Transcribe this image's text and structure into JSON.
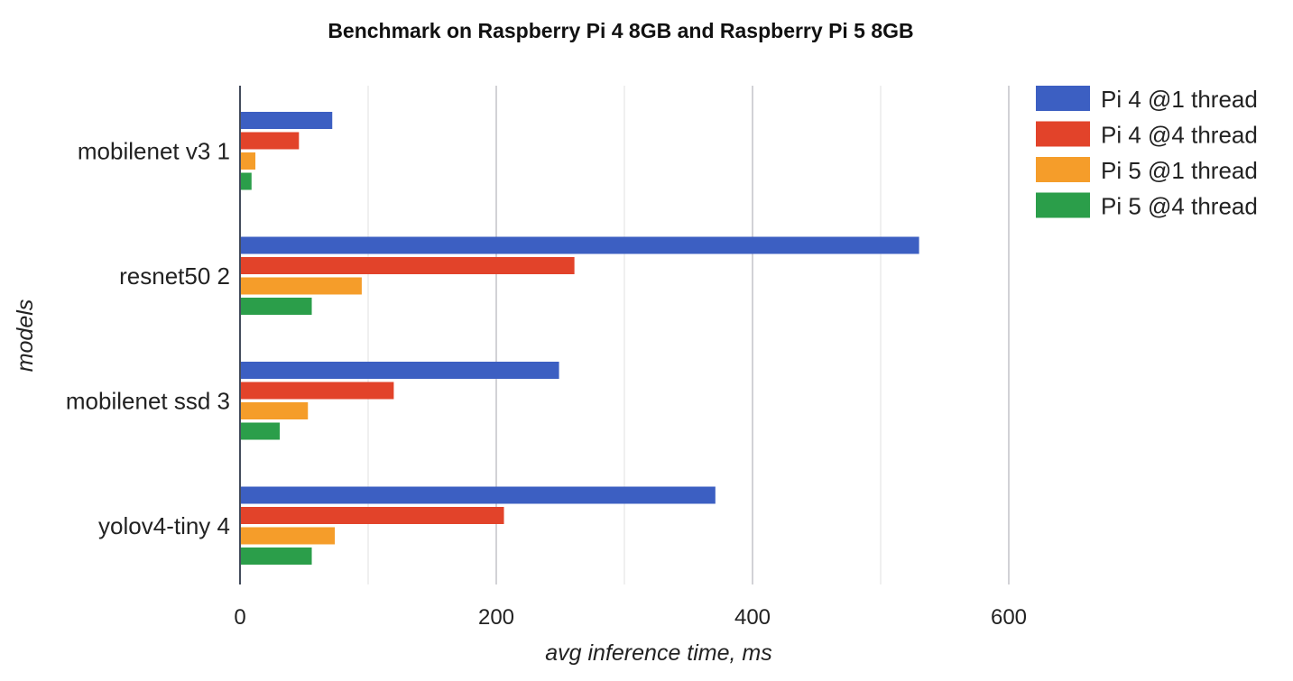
{
  "chart_data": {
    "type": "bar",
    "orientation": "horizontal",
    "title": "Benchmark on Raspberry Pi 4 8GB and Raspberry Pi 5 8GB",
    "xlabel": "avg inference time, ms",
    "ylabel": "models",
    "xlim": [
      0,
      600
    ],
    "xticks": [
      0,
      200,
      400,
      600
    ],
    "minor_gridlines": [
      100,
      300,
      500
    ],
    "grid": true,
    "legend_position": "top-right",
    "categories": [
      "mobilenet v3 1",
      "resnet50 2",
      "mobilenet ssd 3",
      "yolov4-tiny 4"
    ],
    "series": [
      {
        "name": "Pi 4 @1 thread",
        "color": "#3c5fc2",
        "values": [
          72,
          530,
          249,
          371
        ]
      },
      {
        "name": "Pi 4 @4 thread",
        "color": "#e2432a",
        "values": [
          46,
          261,
          120,
          206
        ]
      },
      {
        "name": "Pi 5 @1 thread",
        "color": "#f59d2a",
        "values": [
          12,
          95,
          53,
          74
        ]
      },
      {
        "name": "Pi 5 @4 thread",
        "color": "#2b9e4a",
        "values": [
          9,
          56,
          31,
          56
        ]
      }
    ]
  }
}
